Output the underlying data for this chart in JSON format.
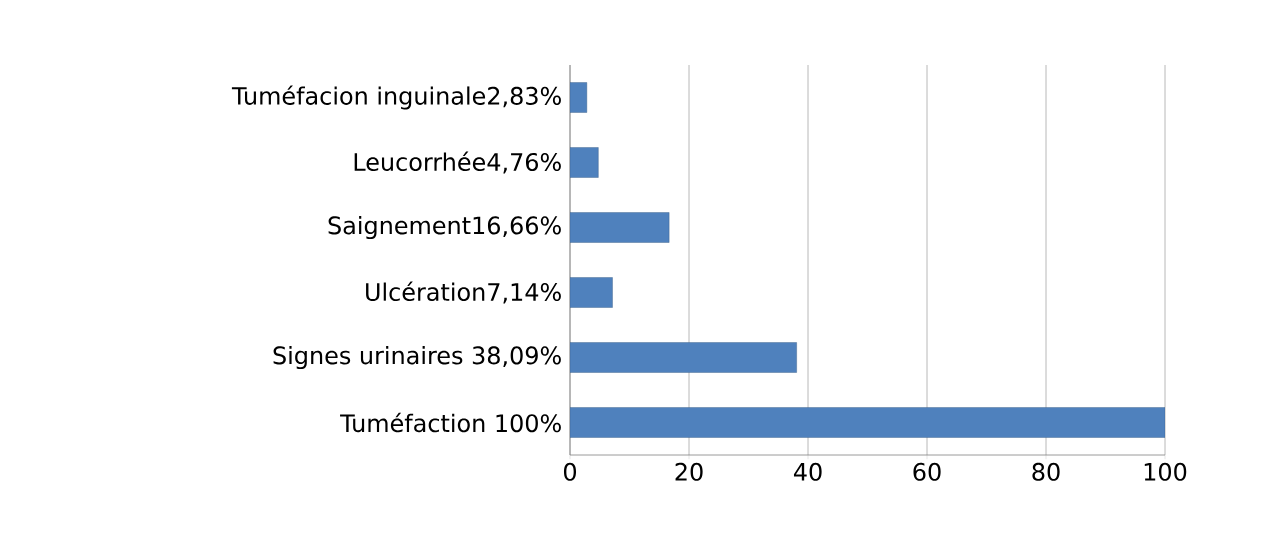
{
  "chart_data": {
    "type": "bar",
    "orientation": "horizontal",
    "categories": [
      "Tuméfacion inguinale2,83%",
      "Leucorrhée4,76%",
      "Saignement16,66%",
      "Ulcération7,14%",
      "Signes urinaires 38,09%",
      "Tuméfaction 100%"
    ],
    "values": [
      2.83,
      4.76,
      16.66,
      7.14,
      38.09,
      100
    ],
    "color": "#4f81bd",
    "xlim": [
      0,
      100
    ],
    "xticks": [
      0,
      20,
      40,
      60,
      80,
      100
    ],
    "grid": "x"
  }
}
